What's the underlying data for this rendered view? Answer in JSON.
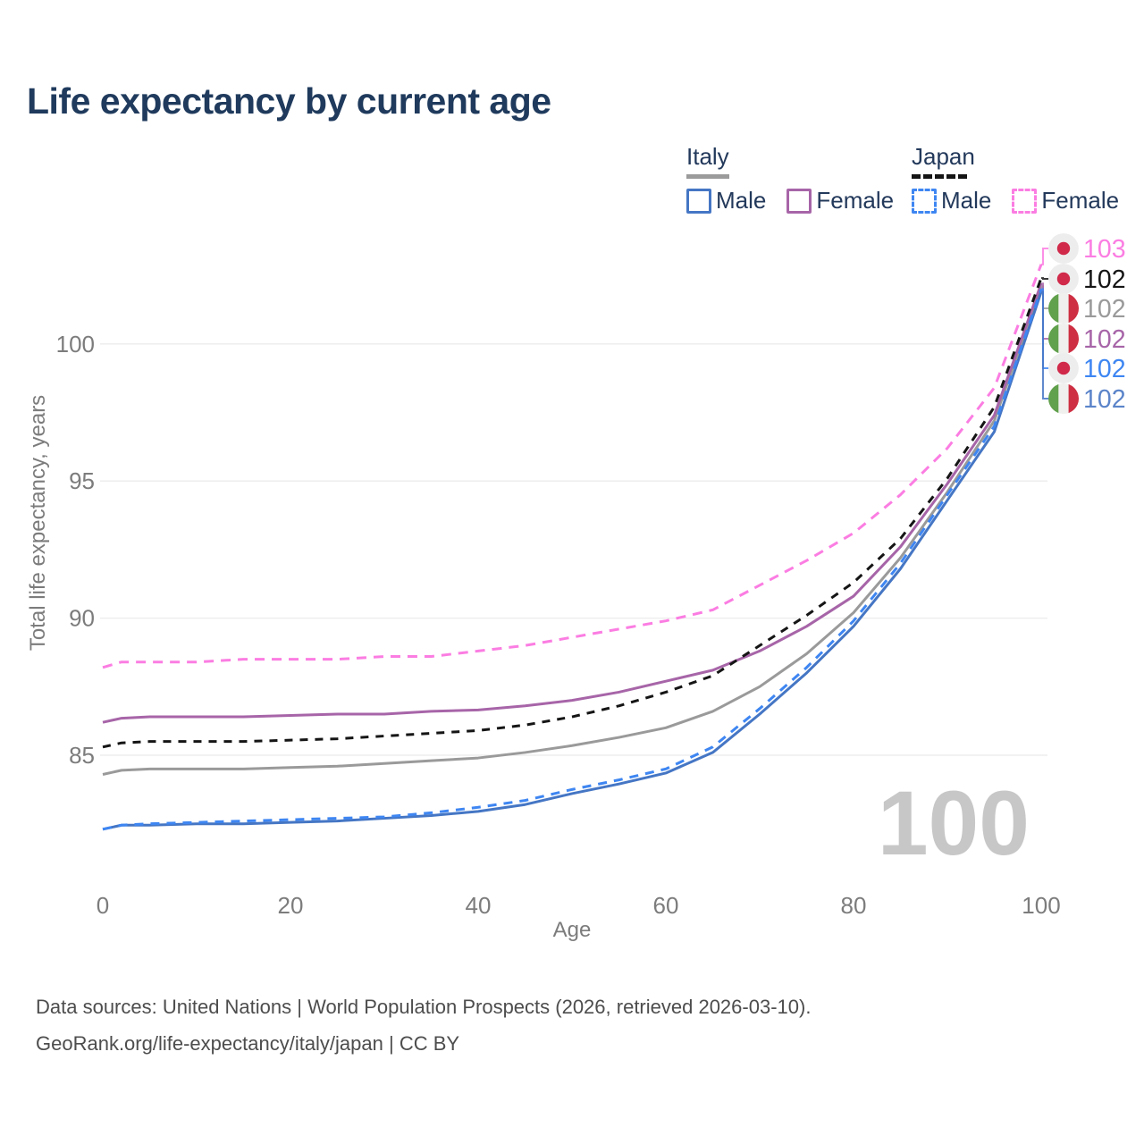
{
  "title": "Life expectancy by current age",
  "legend": {
    "groups": [
      {
        "id": "italy",
        "label": "Italy",
        "line_style": "solid",
        "underline_color": "#9b9b9b",
        "items": [
          {
            "id": "italy-male",
            "label": "Male",
            "series_index": 5
          },
          {
            "id": "italy-female",
            "label": "Female",
            "series_index": 3
          }
        ]
      },
      {
        "id": "japan",
        "label": "Japan",
        "line_style": "dashed",
        "underline_color": "#151515",
        "items": [
          {
            "id": "japan-male",
            "label": "Male",
            "series_index": 4
          },
          {
            "id": "japan-female",
            "label": "Female",
            "series_index": 0
          }
        ]
      }
    ]
  },
  "watermark_current_age": "100",
  "chart_data": {
    "type": "line",
    "title": "Life expectancy by current age",
    "xlabel": "Age",
    "ylabel": "Total life expectancy, years",
    "x_ticks": [
      0,
      20,
      40,
      60,
      80,
      100
    ],
    "y_ticks": [
      85,
      90,
      95,
      100
    ],
    "xlim": [
      0,
      100
    ],
    "ylim": [
      81.5,
      104.5
    ],
    "grid": true,
    "legend_position": "top-right",
    "x": [
      0,
      2,
      5,
      10,
      15,
      20,
      25,
      30,
      35,
      40,
      45,
      50,
      55,
      60,
      65,
      70,
      75,
      80,
      85,
      90,
      95,
      100
    ],
    "series": [
      {
        "id": "japan-female",
        "name": "Japan Female",
        "country": "japan",
        "dashed": true,
        "color": "#fb7de2",
        "label_color": "#fb7de2",
        "dash_pattern": "11 8",
        "end_label": "103",
        "values": [
          88.2,
          88.4,
          88.4,
          88.4,
          88.5,
          88.5,
          88.5,
          88.6,
          88.6,
          88.8,
          89.0,
          89.3,
          89.6,
          89.9,
          90.3,
          91.2,
          92.1,
          93.1,
          94.5,
          96.2,
          98.4,
          102.9
        ]
      },
      {
        "id": "japan",
        "name": "Japan",
        "country": "japan",
        "dashed": true,
        "color": "#151515",
        "label_color": "#151515",
        "dash_pattern": "9 8",
        "end_label": "102",
        "values": [
          85.3,
          85.45,
          85.5,
          85.5,
          85.5,
          85.55,
          85.6,
          85.7,
          85.8,
          85.9,
          86.1,
          86.4,
          86.8,
          87.3,
          87.9,
          89.0,
          90.1,
          91.3,
          92.9,
          95.1,
          97.7,
          102.4
        ]
      },
      {
        "id": "italy",
        "name": "Italy",
        "country": "italy",
        "dashed": false,
        "color": "#9a9a9a",
        "label_color": "#9a9a9a",
        "dash_pattern": "",
        "end_label": "102",
        "values": [
          84.3,
          84.45,
          84.5,
          84.5,
          84.5,
          84.55,
          84.6,
          84.7,
          84.8,
          84.9,
          85.1,
          85.35,
          85.65,
          86.0,
          86.6,
          87.5,
          88.7,
          90.2,
          92.2,
          94.6,
          97.2,
          102.1
        ]
      },
      {
        "id": "italy-female",
        "name": "Italy Female",
        "country": "italy",
        "dashed": false,
        "color": "#a765a8",
        "label_color": "#a765a8",
        "dash_pattern": "",
        "end_label": "102",
        "values": [
          86.2,
          86.35,
          86.4,
          86.4,
          86.4,
          86.45,
          86.5,
          86.5,
          86.6,
          86.65,
          86.8,
          87.0,
          87.3,
          87.7,
          88.1,
          88.8,
          89.7,
          90.8,
          92.6,
          94.9,
          97.4,
          102.2
        ]
      },
      {
        "id": "japan-male",
        "name": "Japan Male",
        "country": "japan",
        "dashed": true,
        "color": "#3e86f2",
        "label_color": "#3e86f2",
        "dash_pattern": "10 8",
        "end_label": "102",
        "values": [
          82.3,
          82.45,
          82.5,
          82.55,
          82.6,
          82.65,
          82.7,
          82.75,
          82.9,
          83.1,
          83.35,
          83.75,
          84.1,
          84.5,
          85.3,
          86.7,
          88.2,
          89.9,
          92.0,
          94.5,
          97.0,
          102.0
        ]
      },
      {
        "id": "italy-male",
        "name": "Italy Male",
        "country": "italy",
        "dashed": false,
        "color": "#4576c4",
        "label_color": "#5b84c9",
        "dash_pattern": "",
        "end_label": "102",
        "values": [
          82.3,
          82.45,
          82.45,
          82.5,
          82.5,
          82.55,
          82.6,
          82.7,
          82.8,
          82.95,
          83.2,
          83.6,
          83.95,
          84.35,
          85.1,
          86.5,
          88.0,
          89.7,
          91.8,
          94.3,
          96.8,
          101.9
        ]
      }
    ],
    "flag_colors": {
      "japan_bg": "#ededed",
      "japan_dot": "#d0294a",
      "italy_green": "#61a04c",
      "italy_white": "#f0f0ee",
      "italy_red": "#ce2f42"
    }
  },
  "footer": {
    "line1": "Data sources: United Nations | World Population Prospects (2026, retrieved 2026-03-10).",
    "line2": "GeoRank.org/life-expectancy/italy/japan | CC BY"
  }
}
